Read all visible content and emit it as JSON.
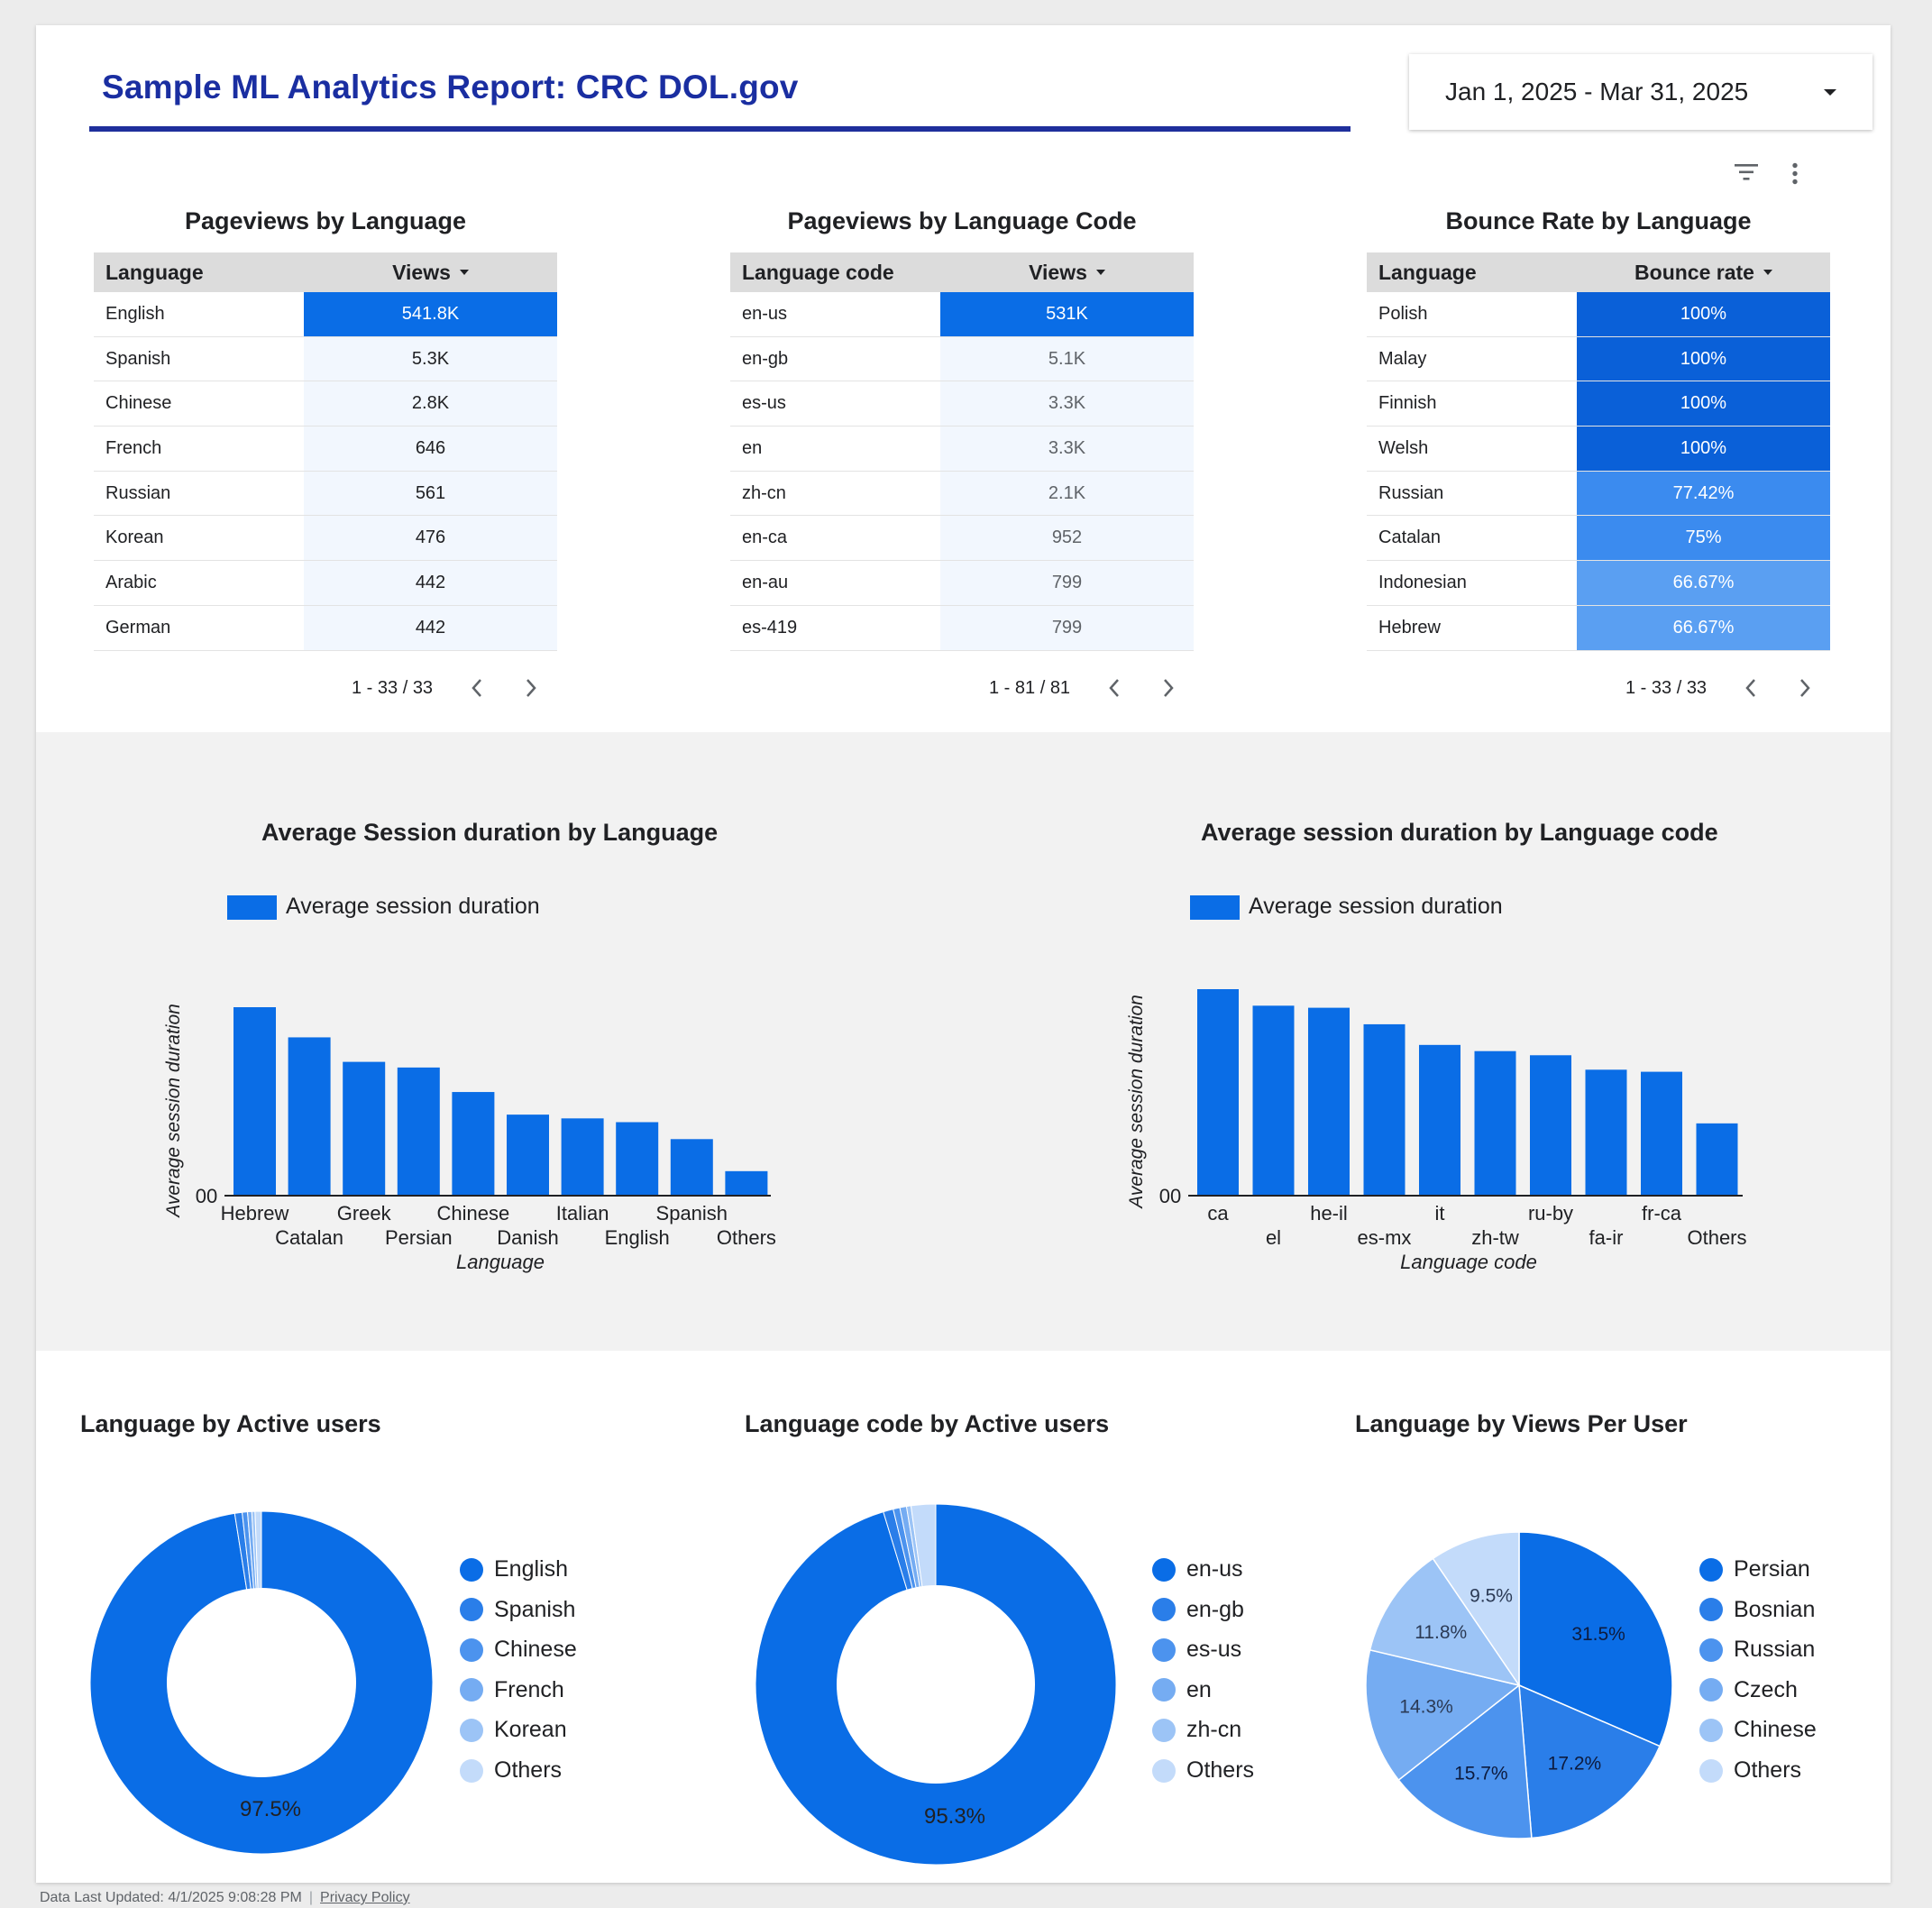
{
  "header": {
    "title": "Sample ML Analytics Report: CRC DOL.gov",
    "date_range": "Jan 1, 2025 - Mar 31, 2025",
    "icons": [
      "filter-icon",
      "more-vert-icon"
    ]
  },
  "colors": {
    "primary": "#0a6de6",
    "title_blue": "#1a2ea1",
    "bar_blue": "#0a6de6"
  },
  "tables": [
    {
      "title": "Pageviews by Language",
      "col1": "Language",
      "col2": "Views",
      "rows": [
        {
          "label": "English",
          "value": "541.8K"
        },
        {
          "label": "Spanish",
          "value": "5.3K"
        },
        {
          "label": "Chinese",
          "value": "2.8K"
        },
        {
          "label": "French",
          "value": "646"
        },
        {
          "label": "Russian",
          "value": "561"
        },
        {
          "label": "Korean",
          "value": "476"
        },
        {
          "label": "Arabic",
          "value": "442"
        },
        {
          "label": "German",
          "value": "442"
        }
      ],
      "range": "1 - 33 / 33"
    },
    {
      "title": "Pageviews by Language Code",
      "col1": "Language code",
      "col2": "Views",
      "rows": [
        {
          "label": "en-us",
          "value": "531K"
        },
        {
          "label": "en-gb",
          "value": "5.1K"
        },
        {
          "label": "es-us",
          "value": "3.3K"
        },
        {
          "label": "en",
          "value": "3.3K"
        },
        {
          "label": "zh-cn",
          "value": "2.1K"
        },
        {
          "label": "en-ca",
          "value": "952"
        },
        {
          "label": "en-au",
          "value": "799"
        },
        {
          "label": "es-419",
          "value": "799"
        }
      ],
      "range": "1 - 81 / 81"
    },
    {
      "title": "Bounce Rate by Language",
      "col1": "Language",
      "col2": "Bounce rate",
      "rows": [
        {
          "label": "Polish",
          "value": "100%"
        },
        {
          "label": "Malay",
          "value": "100%"
        },
        {
          "label": "Finnish",
          "value": "100%"
        },
        {
          "label": "Welsh",
          "value": "100%"
        },
        {
          "label": "Russian",
          "value": "77.42%"
        },
        {
          "label": "Catalan",
          "value": "75%"
        },
        {
          "label": "Indonesian",
          "value": "66.67%"
        },
        {
          "label": "Hebrew",
          "value": "66.67%"
        }
      ],
      "range": "1 - 33 / 33"
    }
  ],
  "bar_charts": [
    {
      "title": "Average Session duration by Language",
      "legend": "Average session duration",
      "ylabel": "Average session duration",
      "xlabel": "Language",
      "zero_label": "00"
    },
    {
      "title": "Average session duration by Language code",
      "legend": "Average session duration",
      "ylabel": "Average session duration",
      "xlabel": "Language code",
      "zero_label": "00"
    }
  ],
  "donut_charts": [
    {
      "title": "Language by Active users",
      "center_label": "97.5%",
      "legend": [
        "English",
        "Spanish",
        "Chinese",
        "French",
        "Korean",
        "Others"
      ]
    },
    {
      "title": "Language code by Active users",
      "center_label": "95.3%",
      "legend": [
        "en-us",
        "en-gb",
        "es-us",
        "en",
        "zh-cn",
        "Others"
      ]
    },
    {
      "title": "Language by Views Per User",
      "legend": [
        "Persian",
        "Bosnian",
        "Russian",
        "Czech",
        "Chinese",
        "Others"
      ]
    }
  ],
  "chart_data": [
    {
      "type": "table",
      "title": "Pageviews by Language",
      "columns": [
        "Language",
        "Views"
      ],
      "rows": [
        [
          "English",
          541800
        ],
        [
          "Spanish",
          5300
        ],
        [
          "Chinese",
          2800
        ],
        [
          "French",
          646
        ],
        [
          "Russian",
          561
        ],
        [
          "Korean",
          476
        ],
        [
          "Arabic",
          442
        ],
        [
          "German",
          442
        ]
      ]
    },
    {
      "type": "table",
      "title": "Pageviews by Language Code",
      "columns": [
        "Language code",
        "Views"
      ],
      "rows": [
        [
          "en-us",
          531000
        ],
        [
          "en-gb",
          5100
        ],
        [
          "es-us",
          3300
        ],
        [
          "en",
          3300
        ],
        [
          "zh-cn",
          2100
        ],
        [
          "en-ca",
          952
        ],
        [
          "en-au",
          799
        ],
        [
          "es-419",
          799
        ]
      ]
    },
    {
      "type": "table",
      "title": "Bounce Rate by Language",
      "columns": [
        "Language",
        "Bounce rate"
      ],
      "rows": [
        [
          "Polish",
          100
        ],
        [
          "Malay",
          100
        ],
        [
          "Finnish",
          100
        ],
        [
          "Welsh",
          100
        ],
        [
          "Russian",
          77.42
        ],
        [
          "Catalan",
          75
        ],
        [
          "Indonesian",
          66.67
        ],
        [
          "Hebrew",
          66.67
        ]
      ]
    },
    {
      "type": "bar",
      "title": "Average Session duration by Language",
      "categories": [
        "Hebrew",
        "Catalan",
        "Greek",
        "Persian",
        "Chinese",
        "Danish",
        "Italian",
        "English",
        "Spanish",
        "Others"
      ],
      "values": [
        100,
        84,
        71,
        68,
        55,
        43,
        41,
        39,
        30,
        13
      ],
      "xlabel": "Language",
      "ylabel": "Average session duration",
      "ylim": [
        0,
        100
      ],
      "grid": false,
      "legend": "top-left"
    },
    {
      "type": "bar",
      "title": "Average session duration by Language code",
      "categories": [
        "ca",
        "el",
        "he-il",
        "es-mx",
        "it",
        "zh-tw",
        "ru-by",
        "fa-ir",
        "fr-ca",
        "Others"
      ],
      "values": [
        100,
        92,
        91,
        83,
        73,
        70,
        68,
        61,
        60,
        35
      ],
      "xlabel": "Language code",
      "ylabel": "Average session duration",
      "ylim": [
        0,
        100
      ],
      "grid": false,
      "legend": "top-left"
    },
    {
      "type": "pie",
      "title": "Language by Active users",
      "labels": [
        "English",
        "Spanish",
        "Chinese",
        "French",
        "Korean",
        "Others"
      ],
      "values": [
        97.5,
        0.7,
        0.5,
        0.4,
        0.3,
        0.6
      ],
      "donut": true
    },
    {
      "type": "pie",
      "title": "Language code by Active users",
      "labels": [
        "en-us",
        "en-gb",
        "es-us",
        "en",
        "zh-cn",
        "Others"
      ],
      "values": [
        95.3,
        0.9,
        0.6,
        0.6,
        0.4,
        2.2
      ],
      "donut": true
    },
    {
      "type": "pie",
      "title": "Language by Views Per User",
      "labels": [
        "Persian",
        "Bosnian",
        "Russian",
        "Czech",
        "Chinese",
        "Others"
      ],
      "values": [
        31.5,
        17.2,
        15.7,
        14.3,
        11.8,
        9.5
      ],
      "donut": false
    }
  ],
  "footer": {
    "updated": "Data Last Updated: 4/1/2025 9:08:28 PM",
    "privacy": "Privacy Policy"
  }
}
